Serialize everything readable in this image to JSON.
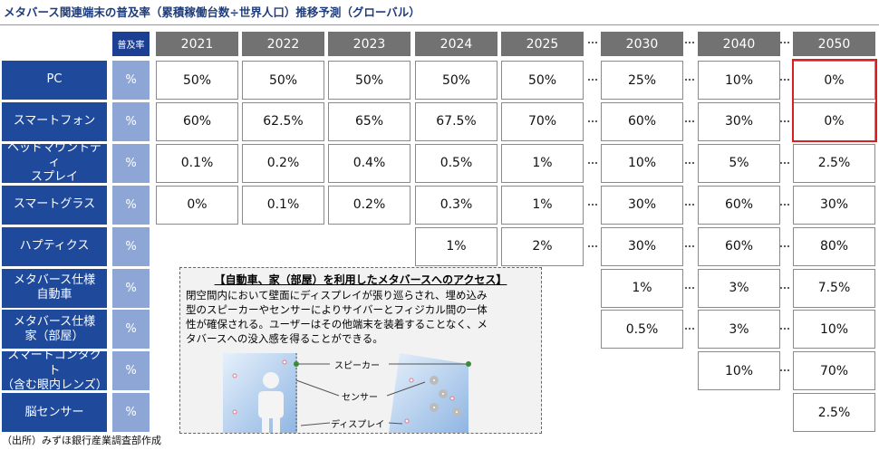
{
  "title": "メタバース関連端末の普及率（累積稼働台数÷世界人口）推移予測（グローバル）",
  "table": {
    "header_label": "普及率",
    "years": [
      "2021",
      "2022",
      "2023",
      "2024",
      "2025",
      "2030",
      "2040",
      "2050"
    ],
    "rows": [
      {
        "label": "PC",
        "unit": "%",
        "cells": [
          "50%",
          "50%",
          "50%",
          "50%",
          "50%",
          "25%",
          "10%",
          "0%"
        ]
      },
      {
        "label": "スマートフォン",
        "unit": "%",
        "cells": [
          "60%",
          "62.5%",
          "65%",
          "67.5%",
          "70%",
          "60%",
          "30%",
          "0%"
        ]
      },
      {
        "label": "ヘッドマウントディ\nスプレイ",
        "unit": "%",
        "cells": [
          "0.1%",
          "0.2%",
          "0.4%",
          "0.5%",
          "1%",
          "10%",
          "5%",
          "2.5%"
        ]
      },
      {
        "label": "スマートグラス",
        "unit": "%",
        "cells": [
          "0%",
          "0.1%",
          "0.2%",
          "0.3%",
          "1%",
          "30%",
          "60%",
          "30%"
        ]
      },
      {
        "label": "ハプティクス",
        "unit": "%",
        "cells": [
          null,
          null,
          null,
          "1%",
          "2%",
          "30%",
          "60%",
          "80%"
        ]
      },
      {
        "label": "メタバース仕様\n自動車",
        "unit": "%",
        "cells": [
          null,
          null,
          null,
          null,
          null,
          "1%",
          "3%",
          "7.5%"
        ]
      },
      {
        "label": "メタバース仕様\n家（部屋）",
        "unit": "%",
        "cells": [
          null,
          null,
          null,
          null,
          null,
          "0.5%",
          "3%",
          "10%"
        ]
      },
      {
        "label": "スマートコンタクト\n（含む眼内レンズ）",
        "unit": "%",
        "cells": [
          null,
          null,
          null,
          null,
          null,
          null,
          "10%",
          "70%"
        ]
      },
      {
        "label": "脳センサー",
        "unit": "%",
        "cells": [
          null,
          null,
          null,
          null,
          null,
          null,
          null,
          "2.5%"
        ]
      }
    ]
  },
  "callout": {
    "title": "【自動車、家（部屋）を利用したメタバースへのアクセス】",
    "body": "閉空間内において壁面にディスプレイが張り巡らされ、埋め込み\n型のスピーカーやセンサーによりサイバーとフィジカル間の一体\n性が確保される。ユーザーはその他端末を装着することなく、メ\nタバースへの没入感を得ることができる。",
    "labels": [
      "スピーカー",
      "センサー",
      "ディスプレイ"
    ]
  },
  "source": "（出所）みずほ銀行産業調査部作成"
}
